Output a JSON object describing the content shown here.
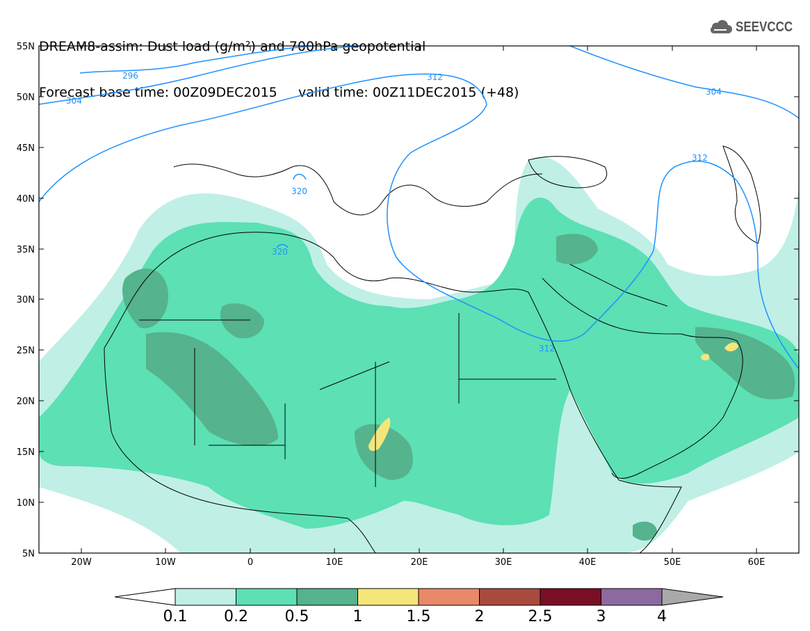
{
  "title": {
    "line1": "DREAM8-assim: Dust load (g/m²) and 700hPa geopotential",
    "line2": "Forecast base time: 00Z09DEC2015     valid time: 00Z11DEC2015 (+48)"
  },
  "logo": {
    "text": "SEEVCCC",
    "icon": "cloud-icon"
  },
  "map": {
    "lon_range": [
      -25,
      65
    ],
    "lat_range": [
      5,
      55
    ],
    "lat_ticks": [
      "55N",
      "50N",
      "45N",
      "40N",
      "35N",
      "30N",
      "25N",
      "20N",
      "15N",
      "10N",
      "5N"
    ],
    "lon_ticks": [
      "20W",
      "10W",
      "0",
      "10E",
      "20E",
      "30E",
      "40E",
      "50E",
      "60E"
    ]
  },
  "contour_labels": [
    "296",
    "304",
    "312",
    "320",
    "320",
    "312",
    "304",
    "312"
  ],
  "colorbar": {
    "levels": [
      "0.1",
      "0.2",
      "0.5",
      "1",
      "1.5",
      "2",
      "2.5",
      "3",
      "4"
    ],
    "colors": [
      "#c0efe6",
      "#5ce0b4",
      "#55b38d",
      "#f5e67a",
      "#e8896a",
      "#a94a3f",
      "#780f25",
      "#8c6aa0"
    ],
    "under_color": "#ffffff",
    "over_color": "#a9a9a9"
  },
  "colors": {
    "contour": "#1e90ff",
    "coast": "#000000"
  }
}
